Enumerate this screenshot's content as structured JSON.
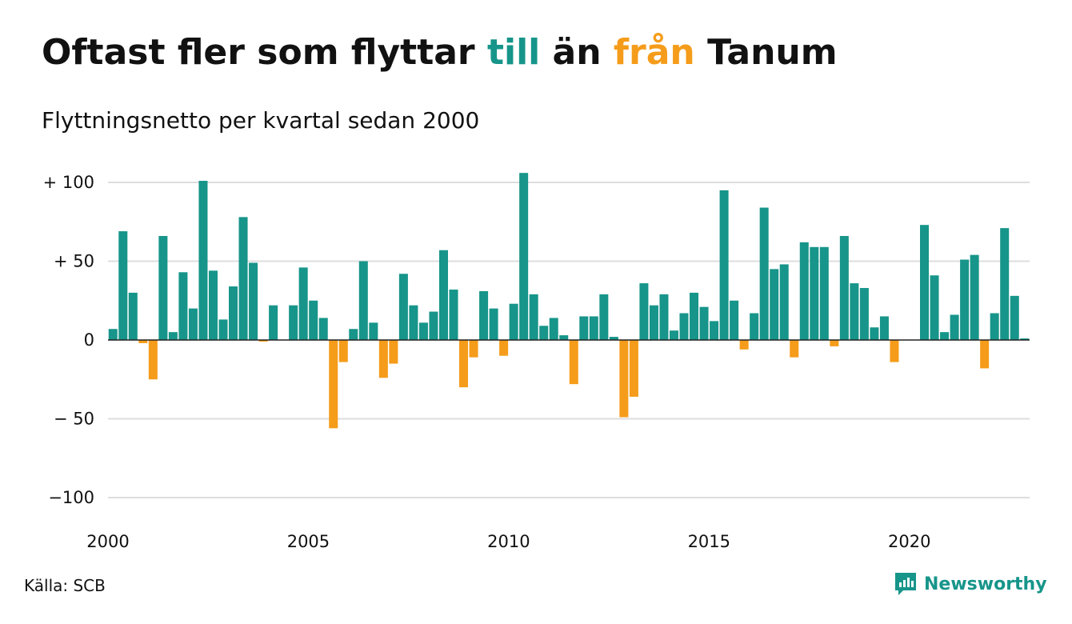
{
  "title": {
    "part1": "Oftast fler som flyttar ",
    "part2": "till",
    "part3": " än ",
    "part4": "från",
    "part5": " Tanum"
  },
  "subtitle": "Flyttningsnetto per kvartal sedan 2000",
  "source": "Källa: SCB",
  "brand": {
    "name": "Newsworthy",
    "icon": "newsworthy-logo-icon"
  },
  "colors": {
    "positive": "#17958a",
    "negative": "#f59c1a",
    "grid": "#dddddd",
    "text": "#111111"
  },
  "chart_data": {
    "type": "bar",
    "title": "Oftast fler som flyttar till än från Tanum",
    "subtitle": "Flyttningsnetto per kvartal sedan 2000",
    "xlabel": "",
    "ylabel": "",
    "ylim": [
      -100,
      100
    ],
    "y_ticks": [
      100,
      50,
      0,
      -50,
      -100
    ],
    "y_tick_labels": [
      "+ 100",
      "+  50",
      "0",
      "− 50",
      "−100"
    ],
    "x_tick_labels": [
      "2000",
      "2005",
      "2010",
      "2015",
      "2020"
    ],
    "x_tick_positions": [
      2000,
      2005,
      2010,
      2015,
      2020
    ],
    "grid": true,
    "first_quarter": "2000 Q1",
    "values": [
      7,
      69,
      30,
      -2,
      -25,
      66,
      5,
      43,
      20,
      101,
      44,
      13,
      34,
      78,
      49,
      -1,
      22,
      0,
      22,
      46,
      25,
      14,
      -56,
      -14,
      7,
      50,
      11,
      -24,
      -15,
      42,
      22,
      11,
      18,
      57,
      32,
      -30,
      -11,
      31,
      20,
      -10,
      23,
      106,
      29,
      9,
      14,
      3,
      -28,
      15,
      15,
      29,
      2,
      -49,
      -36,
      36,
      22,
      29,
      6,
      17,
      30,
      21,
      12,
      95,
      25,
      -6,
      17,
      84,
      45,
      48,
      -11,
      62,
      59,
      59,
      -4,
      66,
      36,
      33,
      8,
      15,
      -14,
      0,
      0,
      73,
      41,
      5,
      16,
      51,
      54,
      -18,
      17,
      71,
      28,
      1
    ]
  }
}
